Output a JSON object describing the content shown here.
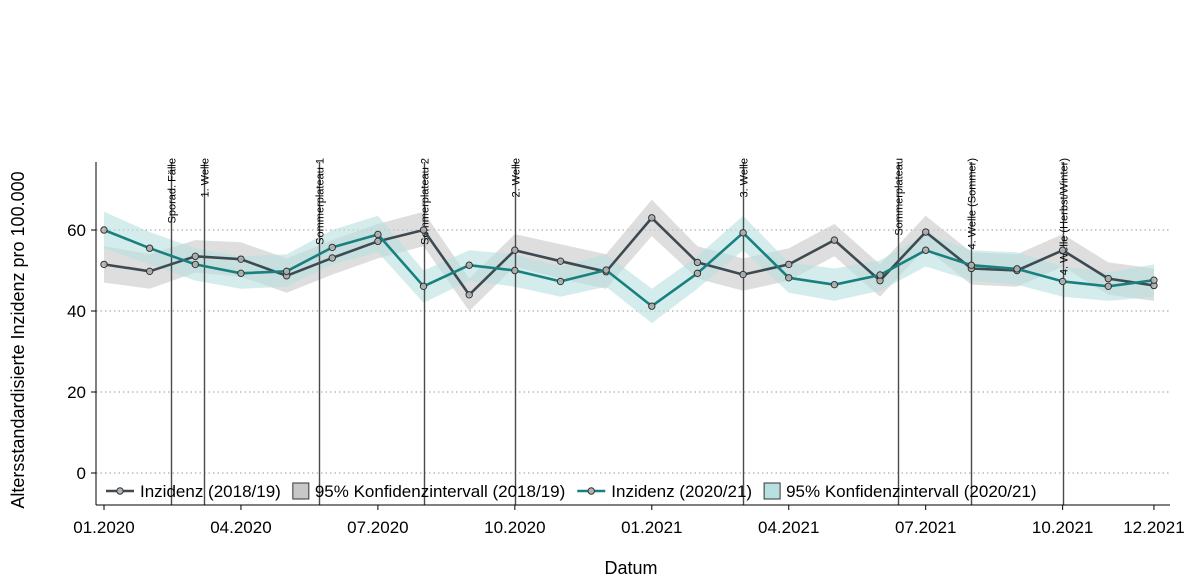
{
  "chart_data": {
    "type": "line",
    "title": "",
    "xlabel": "Datum",
    "ylabel": "Altersstandardisierte Inzidenz pro 100.000",
    "ylim": [
      -5,
      75
    ],
    "y_ticks": [
      0,
      20,
      40,
      60
    ],
    "grid": "horizontal dotted",
    "x_ticks": [
      {
        "date": "2020-01",
        "label": "01.2020"
      },
      {
        "date": "2020-04",
        "label": "04.2020"
      },
      {
        "date": "2020-07",
        "label": "07.2020"
      },
      {
        "date": "2020-10",
        "label": "10.2020"
      },
      {
        "date": "2021-01",
        "label": "01.2021"
      },
      {
        "date": "2021-04",
        "label": "04.2021"
      },
      {
        "date": "2021-07",
        "label": "07.2021"
      },
      {
        "date": "2021-10",
        "label": "10.2021"
      },
      {
        "date": "2021-12",
        "label": "12.2021"
      }
    ],
    "x": [
      "2020-01",
      "2020-02",
      "2020-03",
      "2020-04",
      "2020-05",
      "2020-06",
      "2020-07",
      "2020-08",
      "2020-09",
      "2020-10",
      "2020-11",
      "2020-12",
      "2021-01",
      "2021-02",
      "2021-03",
      "2021-04",
      "2021-05",
      "2021-06",
      "2021-07",
      "2021-08",
      "2021-09",
      "2021-10",
      "2021-11",
      "2021-12"
    ],
    "series": [
      {
        "name": "Inzidenz (2018/19)",
        "color": "#3d4a52",
        "band_color": "#c8c8c8",
        "values": [
          51.5,
          49.8,
          53.5,
          52.8,
          48.7,
          53.1,
          57.2,
          60.0,
          44.0,
          55.0,
          52.3,
          49.7,
          63.0,
          52.0,
          49.0,
          51.5,
          57.5,
          47.5,
          59.5,
          50.5,
          50.0,
          55.0,
          48.0,
          46.3
        ],
        "ci_lower": [
          47.0,
          45.5,
          49.5,
          48.5,
          44.5,
          49.0,
          53.0,
          56.0,
          40.0,
          51.0,
          48.0,
          45.5,
          58.5,
          48.0,
          45.0,
          47.5,
          53.5,
          43.5,
          55.5,
          46.5,
          46.0,
          51.0,
          44.0,
          42.5
        ],
        "ci_upper": [
          56.0,
          54.0,
          57.5,
          57.0,
          53.0,
          57.5,
          61.5,
          64.5,
          48.0,
          59.0,
          56.5,
          54.0,
          67.5,
          56.0,
          53.0,
          55.5,
          61.5,
          51.5,
          63.5,
          54.5,
          54.0,
          59.0,
          52.0,
          50.5
        ]
      },
      {
        "name": "Inzidenz (2020/21)",
        "color": "#18807f",
        "band_color": "#b9e0e0",
        "values": [
          60.0,
          55.5,
          51.5,
          49.3,
          49.8,
          55.7,
          58.9,
          46.1,
          51.3,
          50.0,
          47.3,
          50.1,
          41.2,
          49.3,
          59.3,
          48.2,
          46.5,
          48.9,
          55.0,
          51.3,
          50.4,
          47.3,
          46.1,
          47.6
        ],
        "ci_lower": [
          55.5,
          51.5,
          47.5,
          45.5,
          46.0,
          51.5,
          54.5,
          42.0,
          47.5,
          46.0,
          43.5,
          46.0,
          37.0,
          45.5,
          55.0,
          44.5,
          42.5,
          45.0,
          51.0,
          47.5,
          46.5,
          43.5,
          42.5,
          43.5
        ],
        "ci_upper": [
          64.5,
          59.5,
          55.5,
          53.5,
          54.0,
          60.0,
          63.5,
          50.0,
          55.0,
          54.0,
          51.0,
          54.0,
          45.5,
          53.5,
          63.5,
          52.0,
          50.5,
          52.5,
          59.0,
          55.0,
          54.5,
          51.0,
          49.5,
          51.5
        ]
      }
    ],
    "phases": [
      {
        "date": "2020-02-15",
        "label": "Sporad. Fälle"
      },
      {
        "date": "2020-03-07",
        "label": "1. Welle"
      },
      {
        "date": "2020-05-22",
        "label": "Sommerplateau 1"
      },
      {
        "date": "2020-08-01",
        "label": "Sommerplateau 2"
      },
      {
        "date": "2020-10-01",
        "label": "2. Welle"
      },
      {
        "date": "2021-03-01",
        "label": "3. Welle"
      },
      {
        "date": "2021-06-13",
        "label": "Sommerplateau"
      },
      {
        "date": "2021-08-01",
        "label": "4. Welle (Sommer)"
      },
      {
        "date": "2021-10-01",
        "label": "4. Welle (Herbst/Winter)"
      }
    ],
    "legend": {
      "placement": "bottom inside",
      "entries": [
        {
          "label": "Inzidenz (2018/19)",
          "kind": "line",
          "series": 0
        },
        {
          "label": "95% Konfidenzintervall (2018/19)",
          "kind": "band",
          "series": 0
        },
        {
          "label": "Inzidenz (2020/21)",
          "kind": "line",
          "series": 1
        },
        {
          "label": "95% Konfidenzintervall (2020/21)",
          "kind": "band",
          "series": 1
        }
      ]
    }
  }
}
